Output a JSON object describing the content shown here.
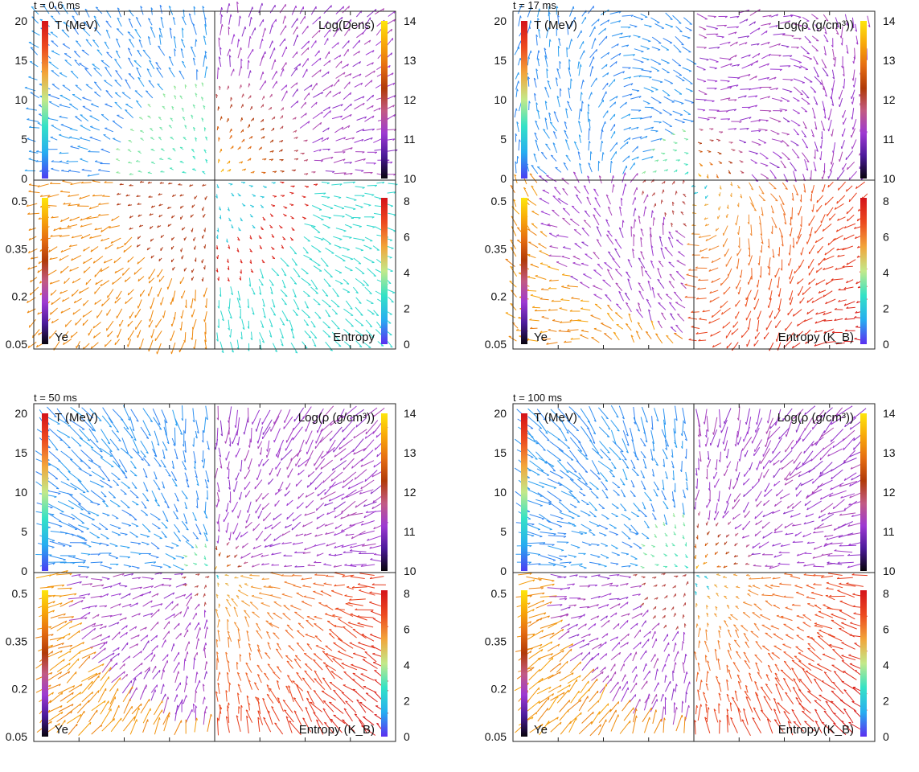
{
  "colormaps": {
    "temperature": [
      "#4a3df2",
      "#27aef0",
      "#34e2c6",
      "#c3e98a",
      "#f2a53a",
      "#ec4a1f",
      "#d4131a"
    ],
    "density": [
      "#07040c",
      "#4b1a9a",
      "#9d39d2",
      "#c25a84",
      "#b03a08",
      "#e56d12",
      "#f8a80a",
      "#fde60d"
    ],
    "ye": [
      "#07040c",
      "#4b1a9a",
      "#9d39d2",
      "#c25a84",
      "#b03a08",
      "#e56d12",
      "#f8a80a",
      "#fde60d"
    ],
    "entropy": [
      "#5b2ff0",
      "#27aef0",
      "#34e2c6",
      "#c3e98a",
      "#f2a53a",
      "#ec4a1f",
      "#d4131a"
    ]
  },
  "chart_data": [
    {
      "type": "quiver",
      "time_label": "t = 0.6 ms",
      "quadrants": {
        "top_left": {
          "label": "T (MeV)",
          "field": "temperature",
          "range": [
            0,
            20
          ]
        },
        "top_right": {
          "label": "Log(Dens)",
          "field": "density",
          "range": [
            10,
            14
          ]
        },
        "bottom_left": {
          "label": "Ye",
          "field": "ye",
          "range": [
            0.05,
            0.5
          ]
        },
        "bottom_right": {
          "label": "Entropy",
          "field": "entropy",
          "range": [
            0,
            8
          ]
        }
      },
      "left_ticks_top": [
        "20",
        "15",
        "10",
        "5",
        "0"
      ],
      "left_ticks_bottom": [
        "0.5",
        "0.35",
        "0.2",
        "0.05"
      ],
      "right_ticks_top": [
        "14",
        "13",
        "12",
        "11",
        "10"
      ],
      "right_ticks_bottom": [
        "8",
        "6",
        "4",
        "2",
        "0"
      ],
      "core_radius_fraction": 0.55,
      "flow_pattern": "outflow"
    },
    {
      "type": "quiver",
      "time_label": "t = 17 ms",
      "quadrants": {
        "top_left": {
          "label": "T (MeV)",
          "field": "temperature",
          "range": [
            0,
            20
          ]
        },
        "top_right": {
          "label": "Log(ρ (g/cm³))",
          "field": "density",
          "range": [
            10,
            14
          ]
        },
        "bottom_left": {
          "label": "Ye",
          "field": "ye",
          "range": [
            0.05,
            0.5
          ]
        },
        "bottom_right": {
          "label": "Entropy (K_B)",
          "field": "entropy",
          "range": [
            0,
            8
          ]
        }
      },
      "left_ticks_top": [
        "20",
        "15",
        "10",
        "5",
        "0"
      ],
      "left_ticks_bottom": [
        "0.5",
        "0.35",
        "0.2",
        "0.05"
      ],
      "right_ticks_top": [
        "14",
        "13",
        "12",
        "11",
        "10"
      ],
      "right_ticks_bottom": [
        "8",
        "6",
        "4",
        "2",
        "0"
      ],
      "core_radius_fraction": 0.3,
      "flow_pattern": "vortex"
    },
    {
      "type": "quiver",
      "time_label": "t = 50 ms",
      "quadrants": {
        "top_left": {
          "label": "T (MeV)",
          "field": "temperature",
          "range": [
            0,
            20
          ]
        },
        "top_right": {
          "label": "Log(ρ (g/cm³))",
          "field": "density",
          "range": [
            10,
            14
          ]
        },
        "bottom_left": {
          "label": "Ye",
          "field": "ye",
          "range": [
            0.05,
            0.5
          ]
        },
        "bottom_right": {
          "label": "Entropy (K_B)",
          "field": "entropy",
          "range": [
            0,
            8
          ]
        }
      },
      "left_ticks_top": [
        "20",
        "15",
        "10",
        "5",
        "0"
      ],
      "left_ticks_bottom": [
        "0.5",
        "0.35",
        "0.2",
        "0.05"
      ],
      "right_ticks_top": [
        "14",
        "13",
        "12",
        "11",
        "10"
      ],
      "right_ticks_bottom": [
        "8",
        "6",
        "4",
        "2",
        "0"
      ],
      "core_radius_fraction": 0.2,
      "flow_pattern": "inflow"
    },
    {
      "type": "quiver",
      "time_label": "t = 100 ms",
      "quadrants": {
        "top_left": {
          "label": "T (MeV)",
          "field": "temperature",
          "range": [
            0,
            20
          ]
        },
        "top_right": {
          "label": "Log(ρ (g/cm³))",
          "field": "density",
          "range": [
            10,
            14
          ]
        },
        "bottom_left": {
          "label": "Ye",
          "field": "ye",
          "range": [
            0.05,
            0.5
          ]
        },
        "bottom_right": {
          "label": "Entropy (K_B)",
          "field": "entropy",
          "range": [
            0,
            8
          ]
        }
      },
      "left_ticks_top": [
        "20",
        "15",
        "10",
        "5",
        "0"
      ],
      "left_ticks_bottom": [
        "0.5",
        "0.35",
        "0.2",
        "0.05"
      ],
      "right_ticks_top": [
        "14",
        "13",
        "12",
        "11",
        "10"
      ],
      "right_ticks_bottom": [
        "8",
        "6",
        "4",
        "2",
        "0"
      ],
      "core_radius_fraction": 0.35,
      "flow_pattern": "inflow"
    }
  ]
}
